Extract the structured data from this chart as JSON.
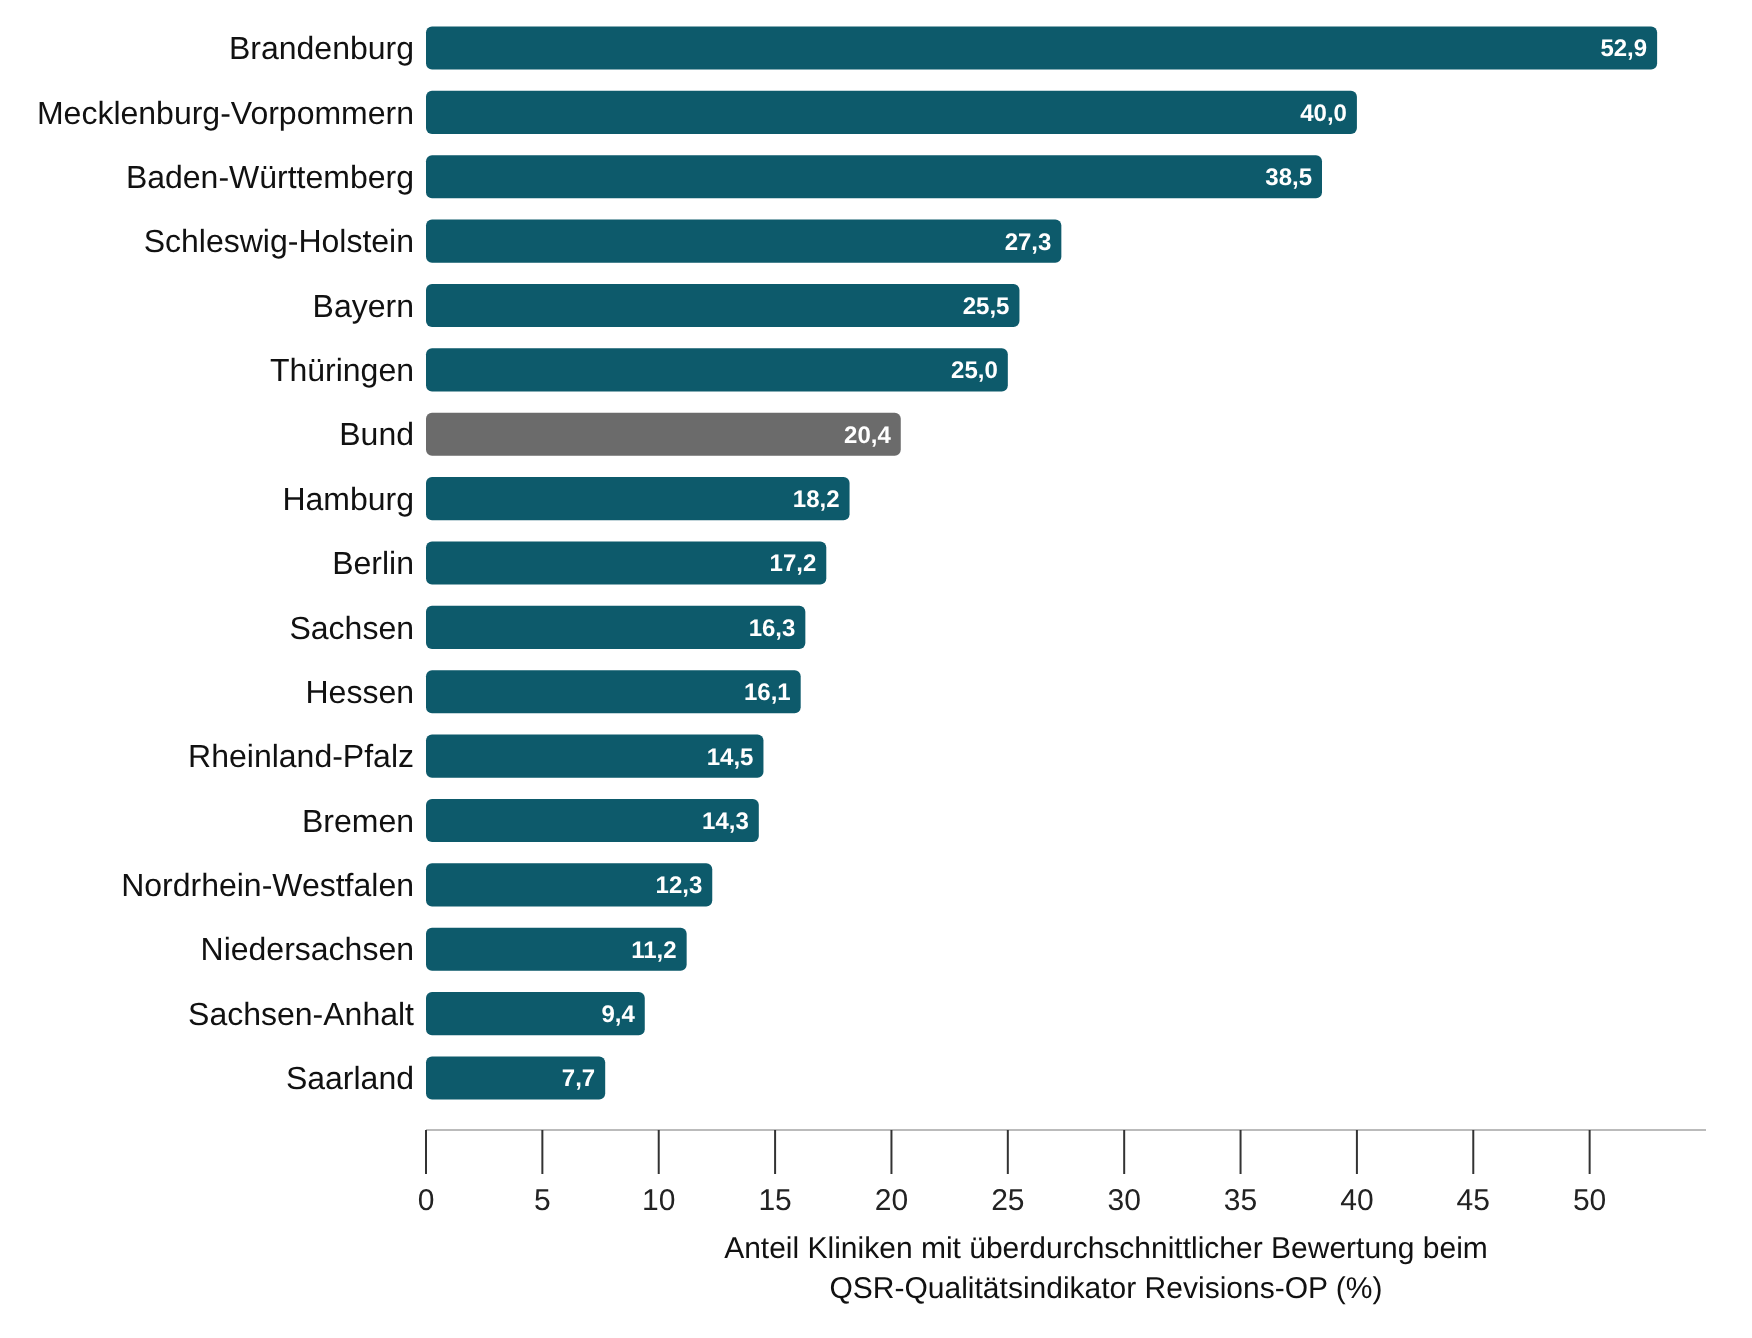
{
  "chart_data": {
    "type": "bar",
    "orientation": "horizontal",
    "xlabel": "Anteil Kliniken mit überdurchschnittlicher Bewertung beim QSR-Qualitätsindikator Revisions-OP (%)",
    "categories": [
      "Brandenburg",
      "Mecklenburg-Vorpommern",
      "Baden-Württemberg",
      "Schleswig-Holstein",
      "Bayern",
      "Thüringen",
      "Bund",
      "Hamburg",
      "Berlin",
      "Sachsen",
      "Hessen",
      "Rheinland-Pfalz",
      "Bremen",
      "Nordrhein-Westfalen",
      "Niedersachsen",
      "Sachsen-Anhalt",
      "Saarland"
    ],
    "values": [
      52.9,
      40.0,
      38.5,
      27.3,
      25.5,
      25.0,
      20.4,
      18.2,
      17.2,
      16.3,
      16.1,
      14.5,
      14.3,
      12.3,
      11.2,
      9.4,
      7.7
    ],
    "value_labels": [
      "52,9",
      "40,0",
      "38,5",
      "27,3",
      "25,5",
      "25,0",
      "20,4",
      "18,2",
      "17,2",
      "16,3",
      "16,1",
      "14,5",
      "14,3",
      "12,3",
      "11,2",
      "9,4",
      "7,7"
    ],
    "colors": [
      "#0d5a6b",
      "#0d5a6b",
      "#0d5a6b",
      "#0d5a6b",
      "#0d5a6b",
      "#0d5a6b",
      "#6b6b6b",
      "#0d5a6b",
      "#0d5a6b",
      "#0d5a6b",
      "#0d5a6b",
      "#0d5a6b",
      "#0d5a6b",
      "#0d5a6b",
      "#0d5a6b",
      "#0d5a6b",
      "#0d5a6b"
    ],
    "xlim": [
      0,
      55
    ],
    "xticks": [
      0,
      5,
      10,
      15,
      20,
      25,
      30,
      35,
      40,
      45,
      50
    ],
    "grid": false
  }
}
